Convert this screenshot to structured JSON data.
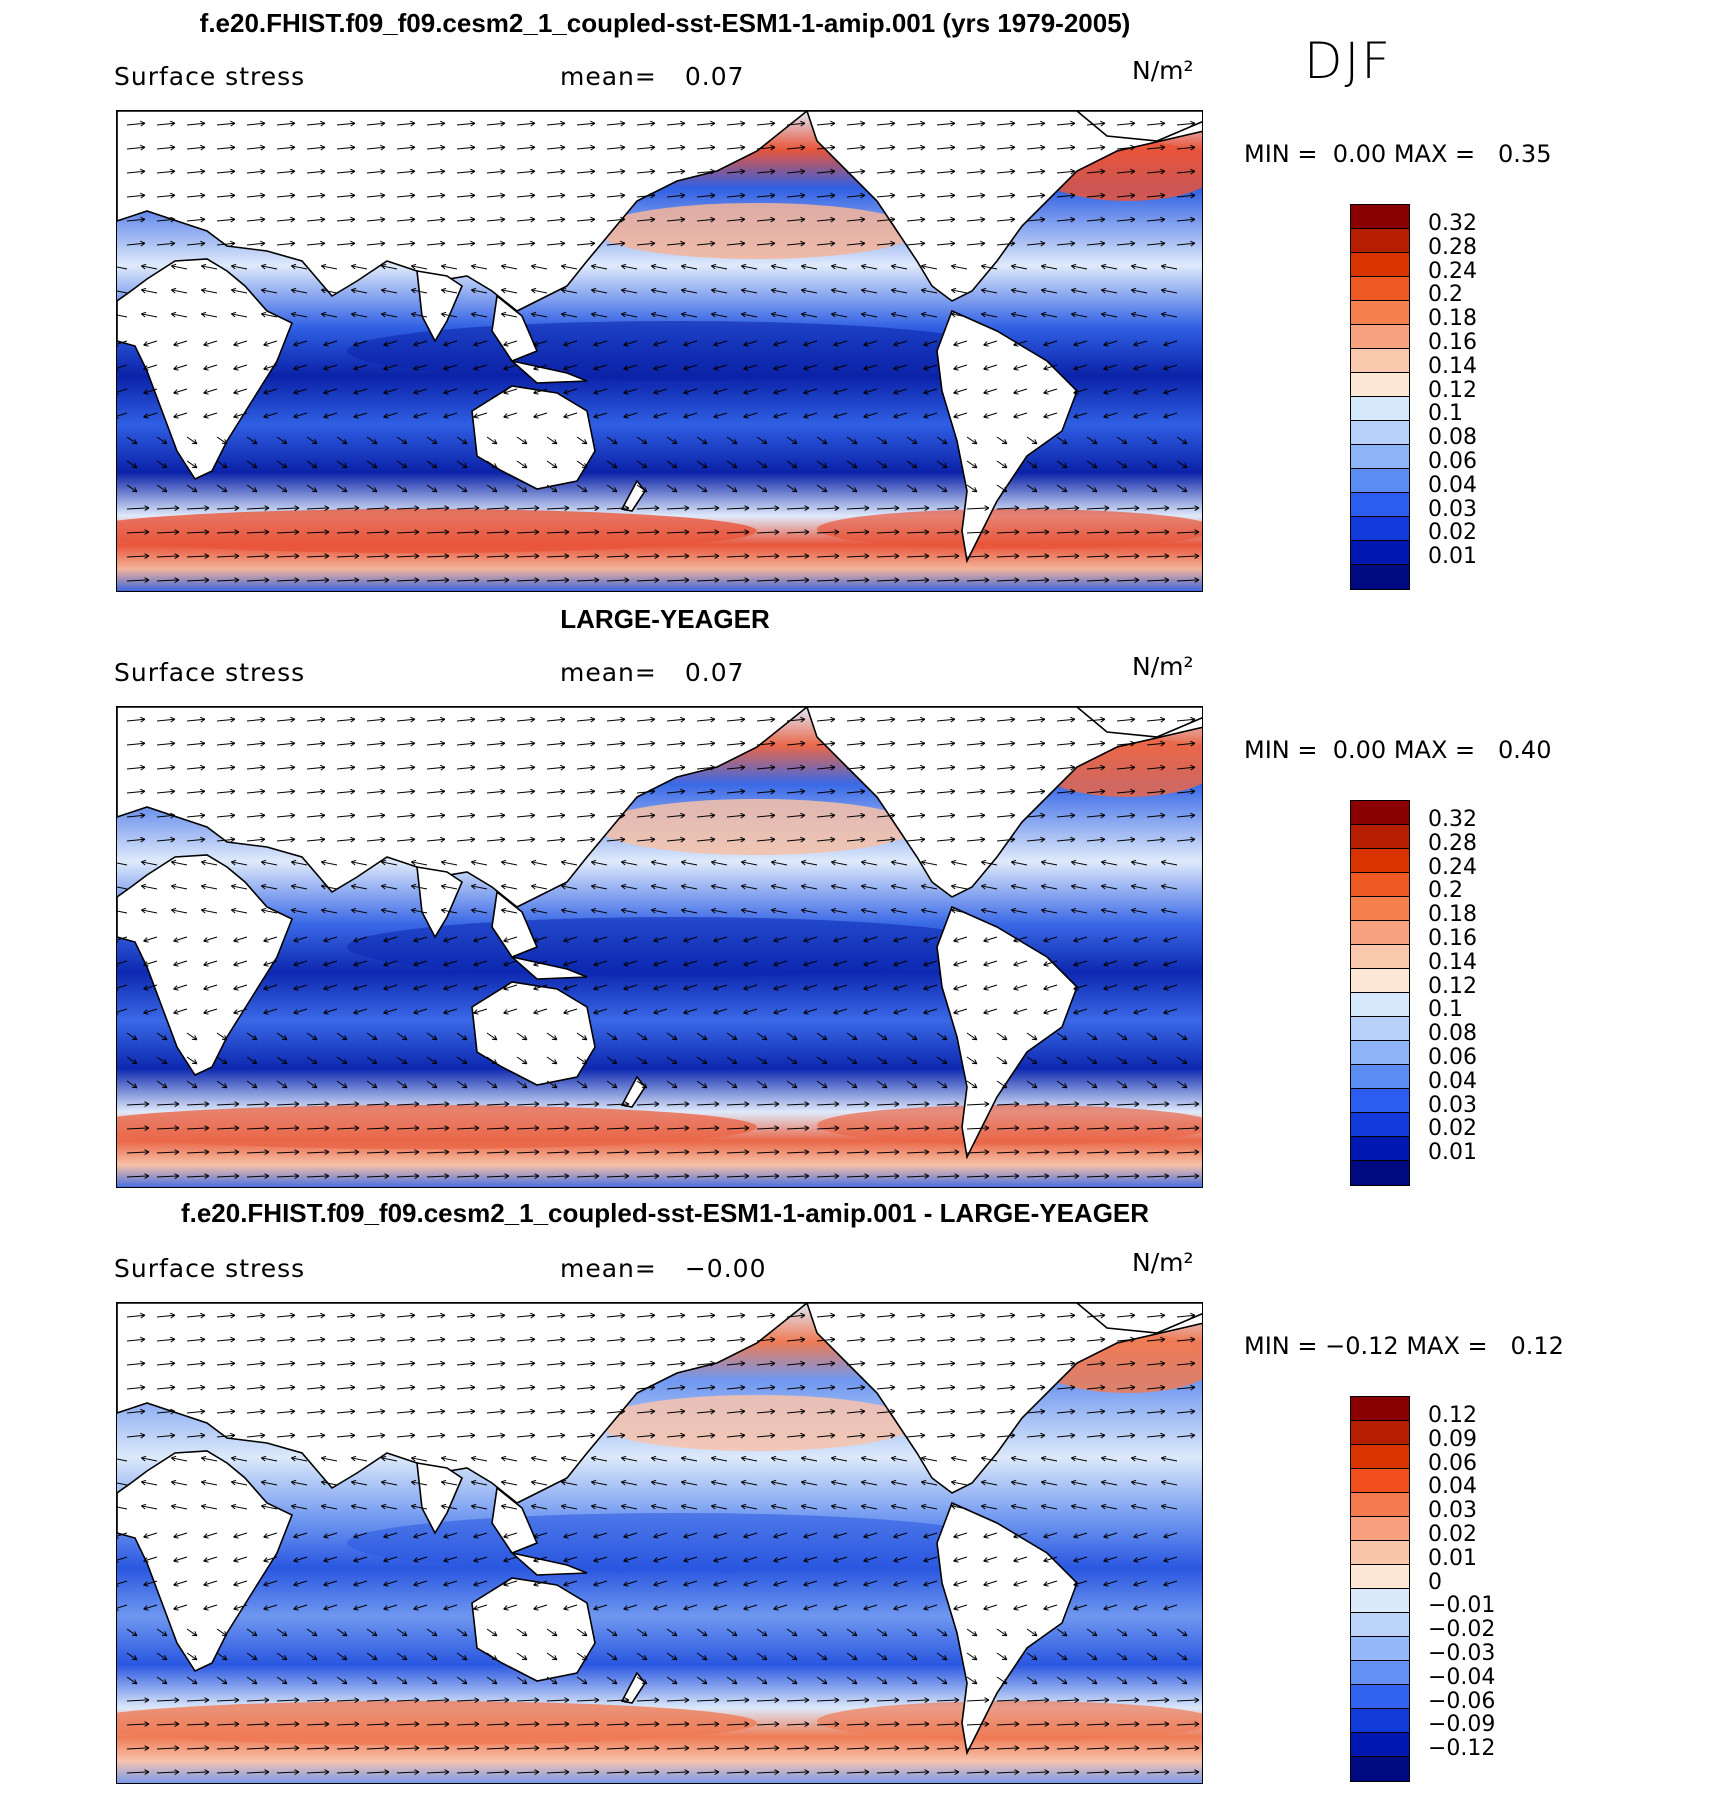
{
  "season": "DJF",
  "panels": [
    {
      "id": "model",
      "title": "f.e20.FHIST.f09_f09.cesm2_1_coupled-sst-ESM1-1-amip.001 (yrs 1979-2005)",
      "variable": "Surface stress",
      "mean_label": "mean=",
      "mean_value": "0.07",
      "units": "N/m²",
      "min_label": "MIN =",
      "min_value": "0.00",
      "max_label": "MAX =",
      "max_value": "0.35",
      "colorbar": {
        "labels": [
          "0.32",
          "0.28",
          "0.24",
          "0.2",
          "0.18",
          "0.16",
          "0.14",
          "0.12",
          "0.1",
          "0.08",
          "0.06",
          "0.04",
          "0.03",
          "0.02",
          "0.01"
        ],
        "colors": [
          "#8b0000",
          "#b51f00",
          "#d93400",
          "#ef5a24",
          "#f7804f",
          "#f8a37f",
          "#fac8ac",
          "#fde8d6",
          "#d6e8fb",
          "#b7d1fa",
          "#8db4f7",
          "#5b8cf2",
          "#2b5ef0",
          "#1239d9",
          "#0018b0",
          "#000a80"
        ]
      },
      "colors": {
        "strong": "#e8553a",
        "mid": "#f4b49a",
        "light": "#dfeafb",
        "weak": "#2f5fe3",
        "deep": "#0b22a8"
      }
    },
    {
      "id": "obs",
      "title": "LARGE-YEAGER",
      "variable": "Surface stress",
      "mean_label": "mean=",
      "mean_value": "0.07",
      "units": "N/m²",
      "min_label": "MIN =",
      "min_value": "0.00",
      "max_label": "MAX =",
      "max_value": "0.40",
      "colorbar": {
        "labels": [
          "0.32",
          "0.28",
          "0.24",
          "0.2",
          "0.18",
          "0.16",
          "0.14",
          "0.12",
          "0.1",
          "0.08",
          "0.06",
          "0.04",
          "0.03",
          "0.02",
          "0.01"
        ],
        "colors": [
          "#8b0000",
          "#b51f00",
          "#d93400",
          "#ef5a24",
          "#f7804f",
          "#f8a37f",
          "#fac8ac",
          "#fde8d6",
          "#d6e8fb",
          "#b7d1fa",
          "#8db4f7",
          "#5b8cf2",
          "#2b5ef0",
          "#1239d9",
          "#0018b0",
          "#000a80"
        ]
      },
      "colors": {
        "strong": "#ea6748",
        "mid": "#f6c1a8",
        "light": "#dfeafb",
        "weak": "#3a69e6",
        "deep": "#0d28b0"
      }
    },
    {
      "id": "diff",
      "title": "f.e20.FHIST.f09_f09.cesm2_1_coupled-sst-ESM1-1-amip.001 - LARGE-YEAGER",
      "variable": "Surface stress",
      "mean_label": "mean=",
      "mean_value": "−0.00",
      "units": "N/m²",
      "min_label": "MIN =",
      "min_value": "−0.12",
      "max_label": "MAX =",
      "max_value": "0.12",
      "colorbar": {
        "labels": [
          "0.12",
          "0.09",
          "0.06",
          "0.04",
          "0.03",
          "0.02",
          "0.01",
          "0",
          "−0.01",
          "−0.02",
          "−0.03",
          "−0.04",
          "−0.06",
          "−0.09",
          "−0.12"
        ],
        "colors": [
          "#8b0000",
          "#b51f00",
          "#d93400",
          "#f24f1f",
          "#f67a4f",
          "#f8a07e",
          "#fac6aa",
          "#fde8d6",
          "#dbe9fb",
          "#bcd3fa",
          "#93b7f7",
          "#6391f3",
          "#3364ef",
          "#123ad8",
          "#0018b0",
          "#000a80"
        ]
      },
      "colors": {
        "strong": "#ef7b55",
        "mid": "#f8c3ad",
        "light": "#dce9fa",
        "weak": "#6f97f0",
        "deep": "#2a57e0"
      }
    }
  ]
}
